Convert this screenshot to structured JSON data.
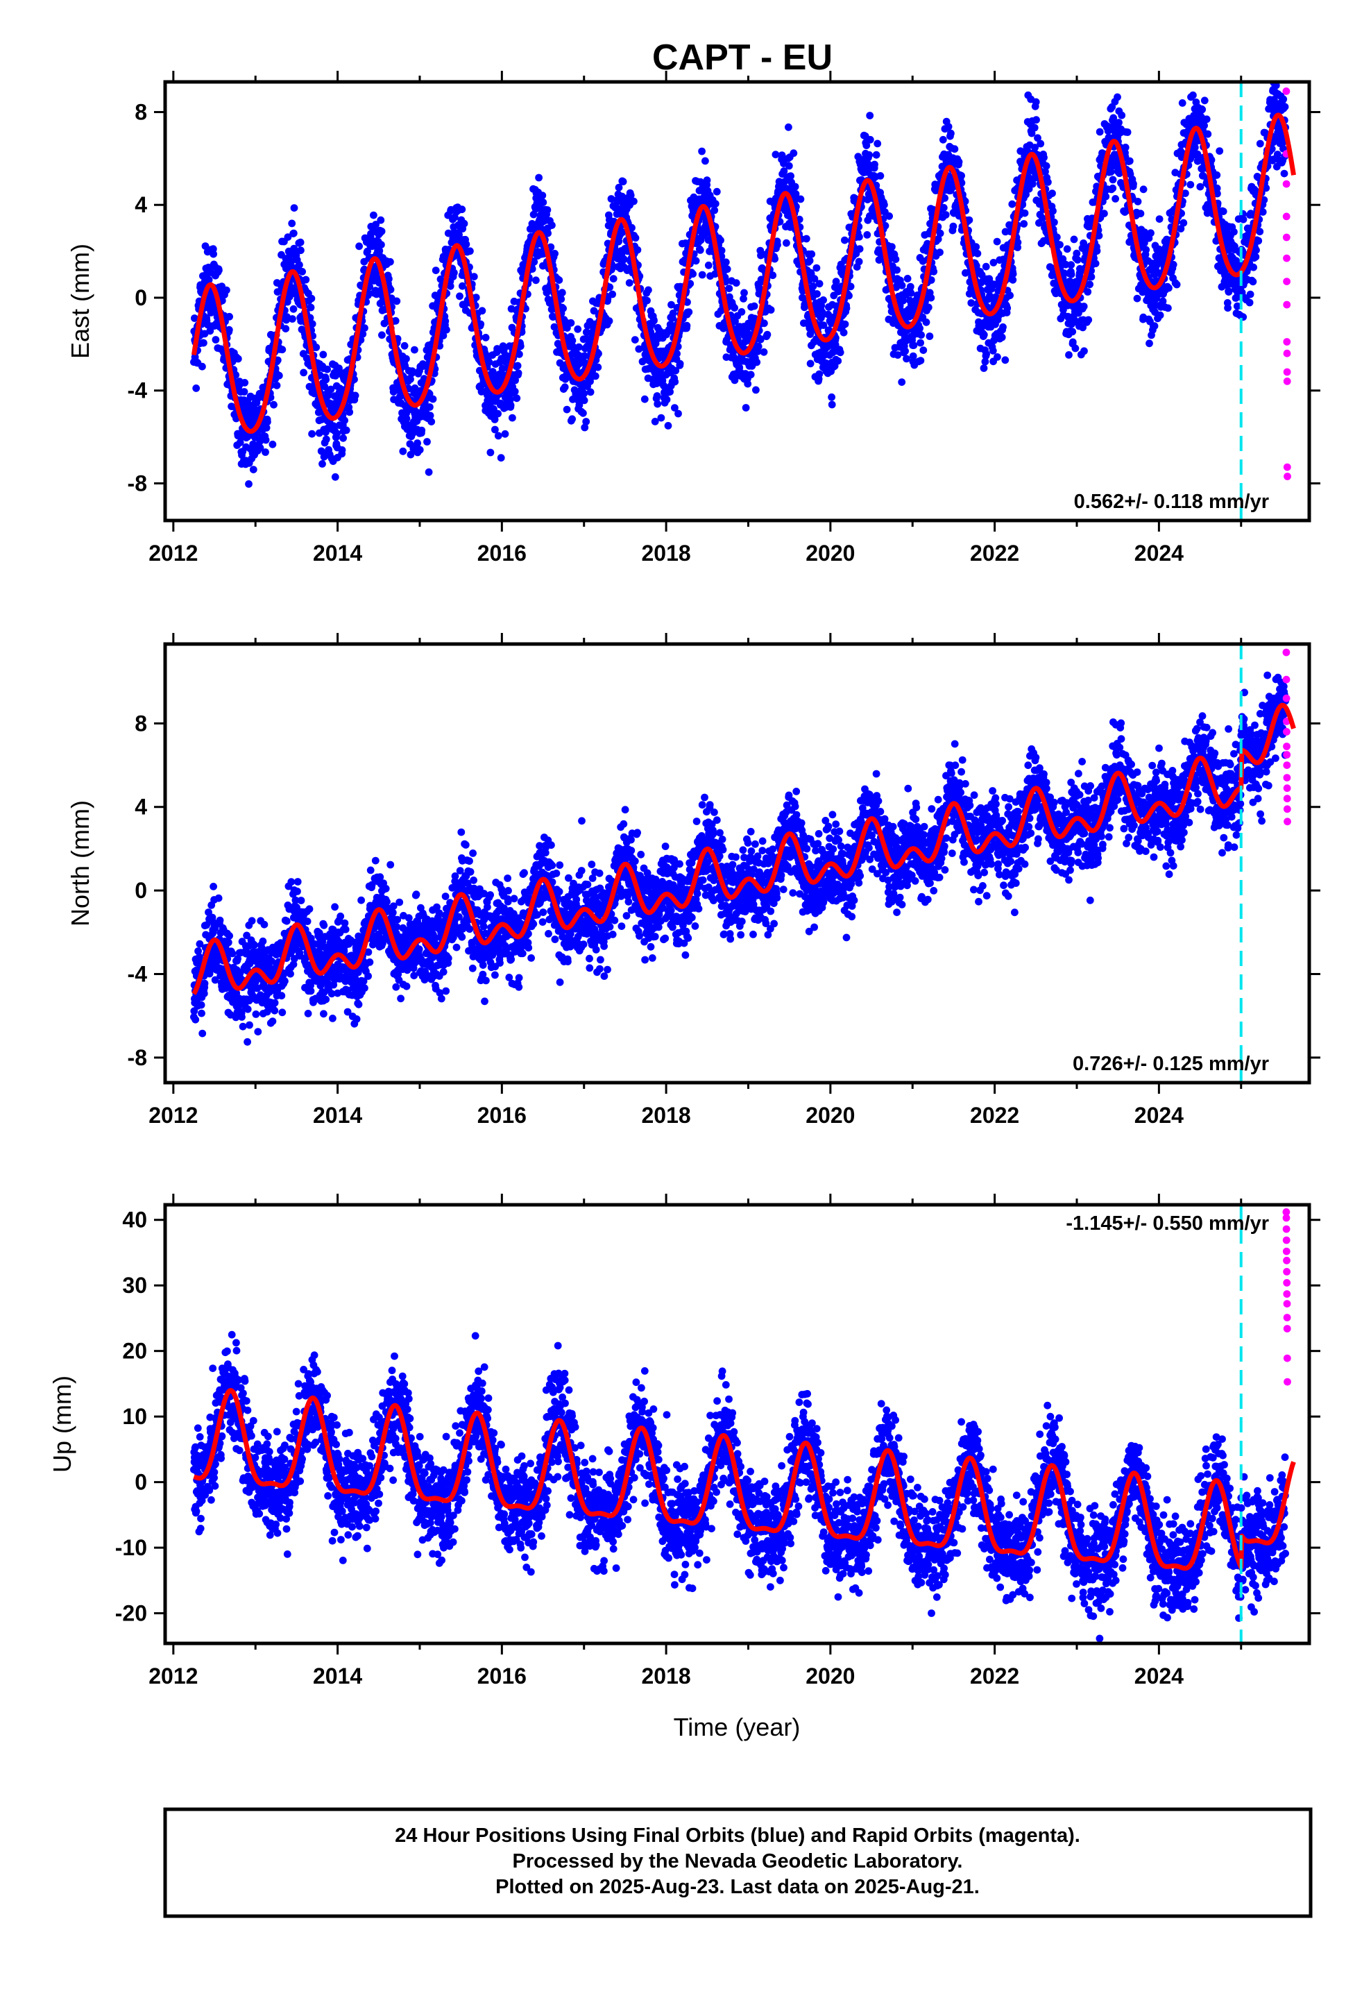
{
  "title": "CAPT - EU",
  "footer": {
    "lines": [
      "24 Hour Positions Using Final Orbits (blue) and Rapid Orbits (magenta).",
      "Processed by the Nevada Geodetic Laboratory.",
      "Plotted on 2025-Aug-23. Last data on 2025-Aug-21."
    ]
  },
  "colors": {
    "final_orbits": "#0000ff",
    "rapid_orbits": "#ff00ff",
    "model_fit": "#ff0000",
    "break_line": "#00e5ee"
  },
  "chart_data": [
    {
      "type": "scatter",
      "ylabel": "East (mm)",
      "xlabel": "",
      "xlim": [
        2011.9,
        2025.83
      ],
      "ylim": [
        -9.6,
        9.3
      ],
      "xticks": [
        "2012",
        "2014",
        "2016",
        "2018",
        "2020",
        "2022",
        "2024"
      ],
      "yticks": [
        "8",
        "4",
        "0",
        "-4",
        "-8"
      ],
      "rate_label": "0.562+/- 0.118 mm/yr",
      "rate_position": "bottom-right",
      "break_epoch": 2025.0,
      "model": {
        "t0": 2012.25,
        "offset": -3.2,
        "rate": 0.562,
        "amp_annual": 3.3,
        "peak_annual": 2012.45,
        "amp_semi": 0.35,
        "peak_semi": 2012.45,
        "post_break_shift": 0.0
      },
      "final_scatter_sd": 1.0,
      "rapid_values": [
        8.9,
        6.2,
        4.9,
        3.5,
        2.6,
        1.7,
        0.7,
        -0.3,
        -1.9,
        -2.4,
        -3.2,
        -3.6,
        -7.3,
        -7.7
      ],
      "series": [
        {
          "name": "Final Orbits (blue)",
          "x_range": [
            2012.25,
            2025.54
          ]
        },
        {
          "name": "Rapid Orbits (magenta)",
          "x_range": [
            2025.55,
            2025.64
          ]
        }
      ]
    },
    {
      "type": "scatter",
      "ylabel": "North (mm)",
      "xlabel": "",
      "xlim": [
        2011.9,
        2025.83
      ],
      "ylim": [
        -9.2,
        11.8
      ],
      "xticks": [
        "2012",
        "2014",
        "2016",
        "2018",
        "2020",
        "2022",
        "2024"
      ],
      "yticks": [
        "8",
        "4",
        "0",
        "-4",
        "-8"
      ],
      "rate_label": "0.726+/- 0.125 mm/yr",
      "rate_position": "bottom-right",
      "break_epoch": 2025.0,
      "model": {
        "t0": 2012.25,
        "offset": -4.2,
        "rate": 0.726,
        "amp_annual": 0.9,
        "peak_annual": 2012.5,
        "amp_semi": 0.75,
        "peak_semi": 2012.5,
        "post_break_shift": 1.8
      },
      "final_scatter_sd": 1.0,
      "rapid_values": [
        11.4,
        10.1,
        9.2,
        8.1,
        7.6,
        6.9,
        6.5,
        6.0,
        5.4,
        4.9,
        4.4,
        3.9,
        3.3
      ],
      "series": [
        {
          "name": "Final Orbits (blue)",
          "x_range": [
            2012.25,
            2025.54
          ]
        },
        {
          "name": "Rapid Orbits (magenta)",
          "x_range": [
            2025.55,
            2025.64
          ]
        }
      ]
    },
    {
      "type": "scatter",
      "ylabel": "Up (mm)",
      "xlabel": "Time (year)",
      "xlim": [
        2011.9,
        2025.83
      ],
      "ylim": [
        -24.6,
        42.3
      ],
      "xticks": [
        "2012",
        "2014",
        "2016",
        "2018",
        "2020",
        "2022",
        "2024"
      ],
      "yticks": [
        "40",
        "30",
        "20",
        "10",
        "0",
        "-10",
        "-20"
      ],
      "rate_label": "-1.145+/- 0.550 mm/yr",
      "rate_position": "top-right",
      "break_epoch": 2025.0,
      "model": {
        "t0": 2012.25,
        "offset": 5.5,
        "rate": -1.145,
        "amp_annual": 6.8,
        "peak_annual": 2012.7,
        "amp_semi": 2.2,
        "peak_semi": 2012.7,
        "post_break_shift": 5.0
      },
      "final_scatter_sd": 3.6,
      "rapid_values": [
        41.2,
        40.3,
        38.6,
        36.9,
        35.2,
        33.8,
        32.1,
        30.4,
        28.7,
        27.2,
        25.1,
        23.4,
        18.9,
        15.3
      ],
      "series": [
        {
          "name": "Final Orbits (blue)",
          "x_range": [
            2012.25,
            2025.54
          ]
        },
        {
          "name": "Rapid Orbits (magenta)",
          "x_range": [
            2025.55,
            2025.64
          ]
        }
      ]
    }
  ]
}
